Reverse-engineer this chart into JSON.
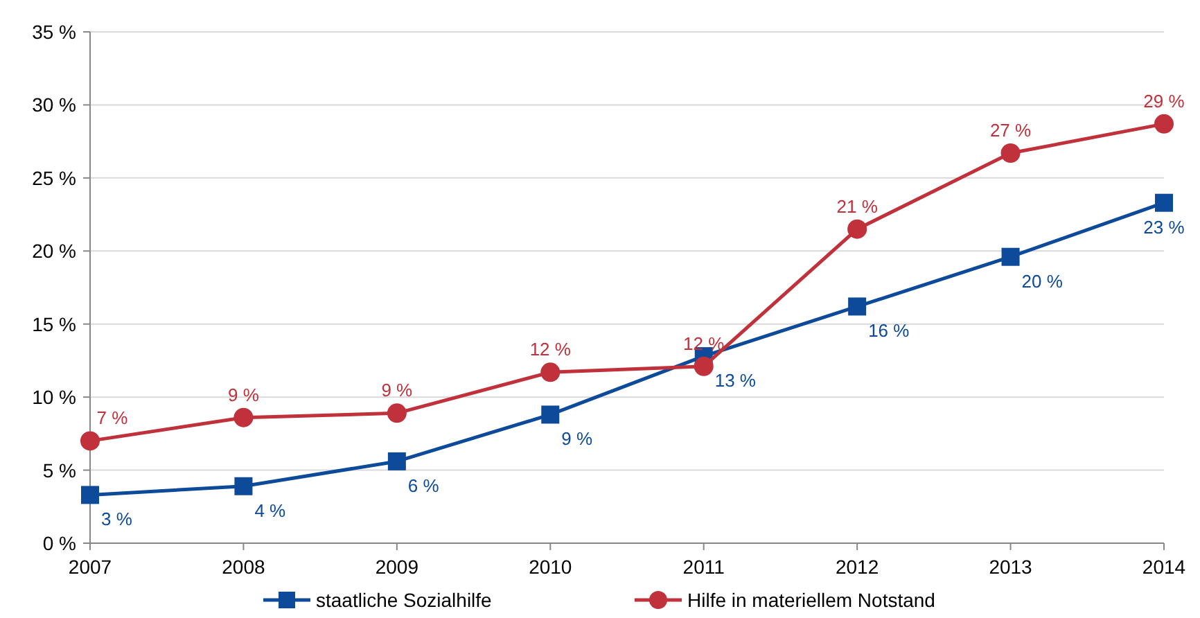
{
  "chart_data": {
    "type": "line",
    "x": [
      2007,
      2008,
      2009,
      2010,
      2011,
      2012,
      2013,
      2014
    ],
    "xlim": [
      2007,
      2014
    ],
    "xticks": [
      2007,
      2008,
      2009,
      2010,
      2011,
      2012,
      2013,
      2014
    ],
    "ylim": [
      0,
      35
    ],
    "yticks": [
      {
        "value": 0,
        "label": "0 %"
      },
      {
        "value": 5,
        "label": "5 %"
      },
      {
        "value": 10,
        "label": "10 %"
      },
      {
        "value": 15,
        "label": "15 %"
      },
      {
        "value": 20,
        "label": "20 %"
      },
      {
        "value": 25,
        "label": "25 %"
      },
      {
        "value": 30,
        "label": "30 %"
      },
      {
        "value": 35,
        "label": "35 %"
      }
    ],
    "grid": "y",
    "legend": "bottom",
    "series": [
      {
        "name": "staatliche Sozialhilfe",
        "color": "#0e4a9a",
        "marker": "square",
        "values": [
          3.3,
          3.9,
          5.6,
          8.8,
          12.8,
          16.2,
          19.6,
          23.3
        ],
        "value_labels": [
          "3 %",
          "4 %",
          "6 %",
          "9 %",
          "13 %",
          "16 %",
          "20 %",
          "23 %"
        ]
      },
      {
        "name": "Hilfe in materiellem Notstand",
        "color": "#c0313b",
        "marker": "circle",
        "values": [
          7.0,
          8.6,
          8.9,
          11.7,
          12.1,
          21.5,
          26.7,
          28.7
        ],
        "value_labels": [
          "7 %",
          "9 %",
          "9 %",
          "12 %",
          "12 %",
          "21 %",
          "27 %",
          "29 %"
        ]
      }
    ]
  }
}
